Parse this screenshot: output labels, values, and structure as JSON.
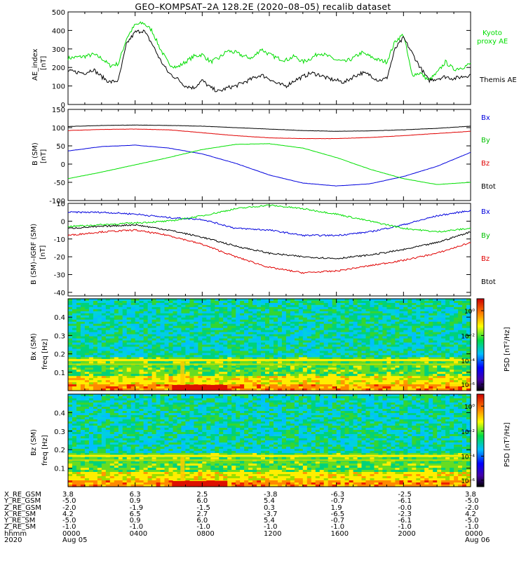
{
  "title": "GEO–KOMPSAT–2A 128.2E (2020–08–05) recalib dataset",
  "colors": {
    "black": "#000000",
    "red": "#e00000",
    "green": "#00e000",
    "blue": "#0000dd",
    "ae_green": "#00dd00"
  },
  "chart_data": [
    {
      "type": "line",
      "title": "AE index",
      "ylabel": "AE_index [nT]",
      "xlim": [
        0,
        24
      ],
      "ylim": [
        0,
        500
      ],
      "yticks": [
        0,
        100,
        200,
        300,
        400,
        500
      ],
      "series": [
        {
          "name": "Kyoto proxy AE",
          "color": "#00dd00",
          "x": [
            0,
            1,
            1.5,
            2,
            2.5,
            3,
            3.5,
            4,
            4.5,
            5,
            5.5,
            6,
            6.5,
            7,
            7.5,
            8,
            8.5,
            9,
            9.5,
            10,
            10.5,
            11,
            11.5,
            12,
            12.5,
            13,
            13.5,
            14,
            14.5,
            15,
            15.5,
            16,
            16.5,
            17,
            17.5,
            18,
            18.5,
            19,
            19.5,
            20,
            20.5,
            21,
            21.5,
            22,
            22.5,
            23,
            23.5,
            24
          ],
          "values": [
            250,
            260,
            270,
            250,
            210,
            220,
            360,
            430,
            440,
            400,
            300,
            220,
            200,
            230,
            260,
            270,
            230,
            250,
            290,
            280,
            260,
            250,
            300,
            270,
            250,
            240,
            260,
            230,
            250,
            280,
            260,
            240,
            230,
            250,
            280,
            260,
            240,
            230,
            340,
            380,
            160,
            170,
            130,
            170,
            230,
            190,
            200,
            220
          ]
        },
        {
          "name": "Themis AE",
          "color": "#000000",
          "x": [
            0,
            1,
            1.5,
            2,
            2.5,
            3,
            3.5,
            4,
            4.5,
            5,
            5.5,
            6,
            6.5,
            7,
            7.5,
            8,
            8.5,
            9,
            9.5,
            10,
            10.5,
            11,
            11.5,
            12,
            12.5,
            13,
            13.5,
            14,
            14.5,
            15,
            15.5,
            16,
            16.5,
            17,
            17.5,
            18,
            18.5,
            19,
            19.5,
            20,
            20.5,
            21,
            21.5,
            22,
            22.5,
            23,
            23.5,
            24
          ],
          "values": [
            180,
            170,
            190,
            150,
            120,
            130,
            330,
            390,
            400,
            330,
            240,
            170,
            140,
            100,
            90,
            130,
            90,
            70,
            90,
            100,
            120,
            140,
            160,
            140,
            110,
            100,
            130,
            150,
            170,
            160,
            140,
            130,
            120,
            150,
            170,
            160,
            130,
            140,
            300,
            360,
            280,
            200,
            130,
            140,
            150,
            140,
            150,
            160
          ]
        }
      ],
      "legend": [
        "Kyoto",
        "proxy AE",
        "Themis AE"
      ]
    },
    {
      "type": "line",
      "title": "B (SM)",
      "ylabel": "B (SM) [nT]",
      "xlim": [
        0,
        24
      ],
      "ylim": [
        -100,
        150
      ],
      "yticks": [
        -100,
        -50,
        0,
        50,
        100,
        150
      ],
      "series": [
        {
          "name": "Bx",
          "color": "#0000dd",
          "x": [
            0,
            2,
            4,
            6,
            8,
            10,
            12,
            14,
            16,
            18,
            20,
            22,
            24
          ],
          "values": [
            36,
            48,
            52,
            44,
            28,
            2,
            -30,
            -52,
            -60,
            -54,
            -34,
            -6,
            32
          ]
        },
        {
          "name": "By",
          "color": "#00e000",
          "x": [
            0,
            2,
            4,
            6,
            8,
            10,
            12,
            14,
            16,
            18,
            20,
            22,
            24
          ],
          "values": [
            -40,
            -22,
            -2,
            18,
            40,
            54,
            56,
            44,
            18,
            -14,
            -40,
            -56,
            -50
          ]
        },
        {
          "name": "Bz",
          "color": "#e00000",
          "x": [
            0,
            2,
            4,
            6,
            8,
            10,
            12,
            14,
            16,
            18,
            20,
            22,
            24
          ],
          "values": [
            92,
            95,
            96,
            94,
            86,
            78,
            72,
            70,
            70,
            73,
            78,
            84,
            90
          ]
        },
        {
          "name": "Btot",
          "color": "#000000",
          "x": [
            0,
            2,
            4,
            6,
            8,
            10,
            12,
            14,
            16,
            18,
            20,
            22,
            24
          ],
          "values": [
            103,
            106,
            107,
            106,
            104,
            100,
            96,
            92,
            90,
            91,
            94,
            98,
            104
          ]
        }
      ],
      "legend": [
        "Bx",
        "By",
        "Bz",
        "Btot"
      ]
    },
    {
      "type": "line",
      "title": "B (SM)-IGRF (SM)",
      "ylabel": "B (SM)–IGRF (SM) [nT]",
      "xlim": [
        0,
        24
      ],
      "ylim": [
        -42,
        10
      ],
      "yticks": [
        -40,
        -30,
        -20,
        -10,
        0,
        10
      ],
      "series": [
        {
          "name": "Bx",
          "color": "#0000dd",
          "x": [
            0,
            2,
            4,
            6,
            8,
            10,
            12,
            14,
            16,
            18,
            20,
            22,
            24
          ],
          "values": [
            5,
            5,
            4,
            2,
            1,
            -4,
            -5,
            -8,
            -8,
            -6,
            -2,
            3,
            6
          ]
        },
        {
          "name": "By",
          "color": "#00e000",
          "x": [
            0,
            2,
            4,
            6,
            8,
            10,
            12,
            14,
            16,
            18,
            20,
            22,
            24
          ],
          "values": [
            -3,
            -2,
            -1,
            0,
            3,
            7,
            9,
            7,
            4,
            0,
            -4,
            -6,
            -4
          ]
        },
        {
          "name": "Bz",
          "color": "#e00000",
          "x": [
            0,
            2,
            4,
            6,
            8,
            10,
            12,
            14,
            16,
            18,
            20,
            22,
            24
          ],
          "values": [
            -8,
            -6,
            -5,
            -8,
            -13,
            -20,
            -26,
            -29,
            -28,
            -25,
            -22,
            -18,
            -12
          ]
        },
        {
          "name": "Btot",
          "color": "#000000",
          "x": [
            0,
            2,
            4,
            6,
            8,
            10,
            12,
            14,
            16,
            18,
            20,
            22,
            24
          ],
          "values": [
            -4,
            -3,
            -2,
            -5,
            -9,
            -14,
            -18,
            -20,
            -21,
            -19,
            -16,
            -12,
            -6
          ]
        }
      ],
      "legend": [
        "Bx",
        "By",
        "Bz",
        "Btot"
      ]
    },
    {
      "type": "heatmap",
      "title": "Bx (SM) spectrogram",
      "ylabel": "Bx (SM) freq [Hz]",
      "xlim": [
        0,
        24
      ],
      "ylim": [
        0,
        0.5
      ],
      "yticks": [
        "0.1",
        "0.2",
        "0.3",
        "0.4"
      ],
      "colorbar": {
        "label": "PSD [nT²/Hz]",
        "ticks": [
          "10⁰",
          "10⁻²",
          "10⁻⁴",
          "10⁻⁶"
        ]
      }
    },
    {
      "type": "heatmap",
      "title": "Bz (SM) spectrogram",
      "ylabel": "Bz (SM) freq [Hz]",
      "xlim": [
        0,
        24
      ],
      "ylim": [
        0,
        0.5
      ],
      "yticks": [
        "0.1",
        "0.2",
        "0.3",
        "0.4"
      ],
      "colorbar": {
        "label": "PSD [nT²/Hz]",
        "ticks": [
          "10⁰",
          "10⁻²",
          "10⁻⁴",
          "10⁻⁶"
        ]
      }
    }
  ],
  "labels": {
    "ae_y": "AE_index",
    "ae_unit": "[nT]",
    "bsm_y": "B (SM)",
    "bsm_unit": "[nT]",
    "bigrf_y": "B (SM)–IGRF (SM)",
    "bigrf_unit": "[nT]",
    "bx_freq_y": "Bx (SM)",
    "bz_freq_y": "Bz (SM)",
    "freq_unit": "freq [Hz]",
    "psd_label": "PSD [nT²/Hz]"
  },
  "legend_ae": {
    "kyoto": "Kyoto",
    "proxy": "proxy AE",
    "themis": "Themis AE"
  },
  "legend_b": {
    "bx": "Bx",
    "by": "By",
    "bz": "Bz",
    "btot": "Btot"
  },
  "orbit": {
    "row_labels": [
      "X_RE_GSM",
      "Y_RE_GSM",
      "Z_RE_GSM",
      "X_RE_SM",
      "Y_RE_SM",
      "Z_RE_SM",
      "hhmm",
      "2020"
    ],
    "columns": [
      [
        "3.8",
        "-5.0",
        "-2.0",
        "4.2",
        "-5.0",
        "-1.0",
        "0000",
        "Aug 05"
      ],
      [
        "6.3",
        "0.9",
        "-1.9",
        "6.5",
        "0.9",
        "-1.0",
        "0400",
        ""
      ],
      [
        "2.5",
        "6.0",
        "-1.5",
        "2.7",
        "6.0",
        "-1.0",
        "0800",
        ""
      ],
      [
        "-3.8",
        "5.4",
        "0.3",
        "-3.7",
        "5.4",
        "-1.0",
        "1200",
        ""
      ],
      [
        "-6.3",
        "-0.7",
        "1.9",
        "-6.5",
        "-0.7",
        "-1.0",
        "1600",
        ""
      ],
      [
        "-2.5",
        "-6.1",
        "-0.0",
        "-2.3",
        "-6.1",
        "-1.0",
        "2000",
        ""
      ],
      [
        "3.8",
        "-5.0",
        "-2.0",
        "4.2",
        "-5.0",
        "-1.0",
        "0000",
        "Aug 06"
      ]
    ]
  }
}
